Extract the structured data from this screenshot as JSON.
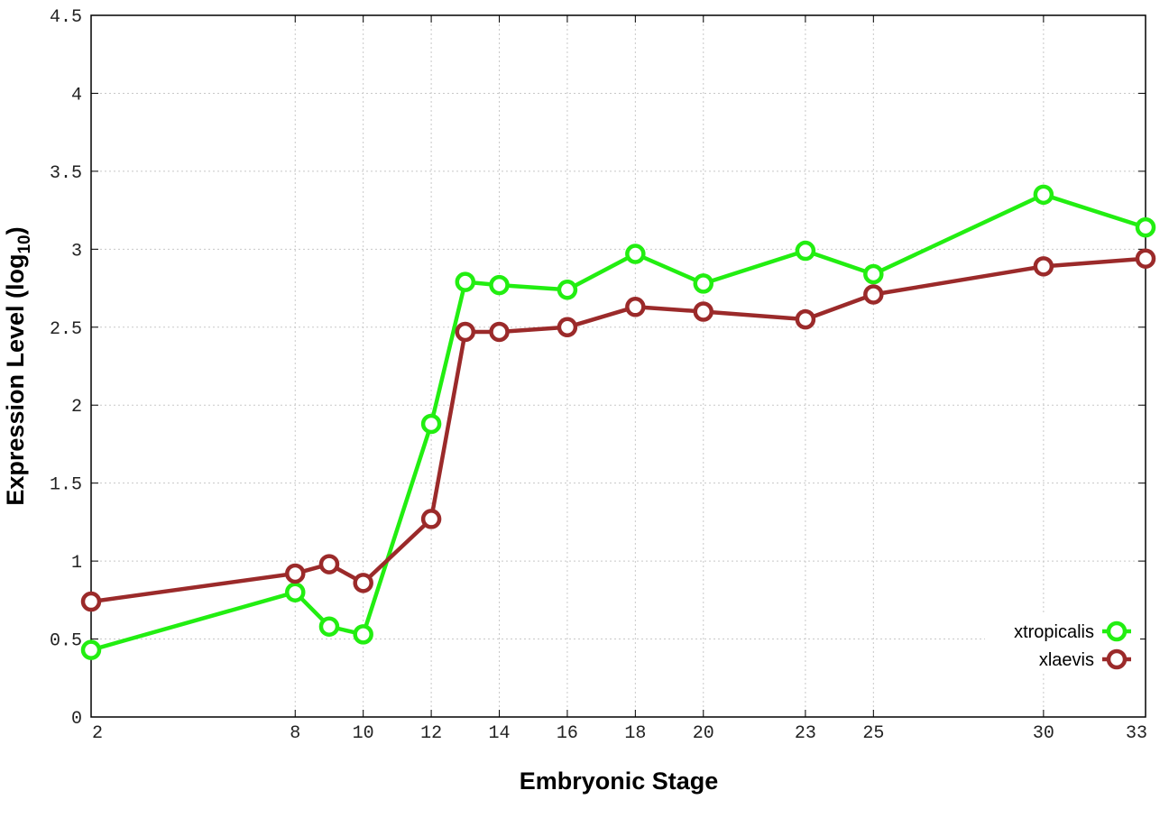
{
  "chart_data": {
    "type": "line",
    "title": "",
    "xlabel": "Embryonic Stage",
    "ylabel_main": "Expression Level (log",
    "ylabel_sub": "10",
    "ylabel_close": ")",
    "xlim": [
      2,
      33
    ],
    "ylim": [
      0,
      4.5
    ],
    "x_ticks": [
      2,
      8,
      10,
      12,
      14,
      16,
      18,
      20,
      23,
      25,
      30,
      33
    ],
    "y_ticks": [
      0,
      0.5,
      1,
      1.5,
      2,
      2.5,
      3,
      3.5,
      4,
      4.5
    ],
    "y_tick_labels": [
      "0",
      "0.5",
      "1",
      "1.5",
      "2",
      "2.5",
      "3",
      "3.5",
      "4",
      "4.5"
    ],
    "x": [
      2,
      8,
      9,
      10,
      12,
      13,
      14,
      16,
      18,
      20,
      23,
      25,
      30,
      33
    ],
    "grid": true,
    "legend_position": "bottom-right",
    "series": [
      {
        "name": "xtropicalis",
        "color": "#22ee11",
        "values": [
          0.43,
          0.8,
          0.58,
          0.53,
          1.88,
          2.79,
          2.77,
          2.74,
          2.97,
          2.78,
          2.99,
          2.84,
          3.35,
          3.14
        ]
      },
      {
        "name": "xlaevis",
        "color": "#9b2a2a",
        "values": [
          0.74,
          0.92,
          0.98,
          0.86,
          1.27,
          2.47,
          2.47,
          2.5,
          2.63,
          2.6,
          2.55,
          2.71,
          2.89,
          2.94
        ]
      }
    ]
  }
}
